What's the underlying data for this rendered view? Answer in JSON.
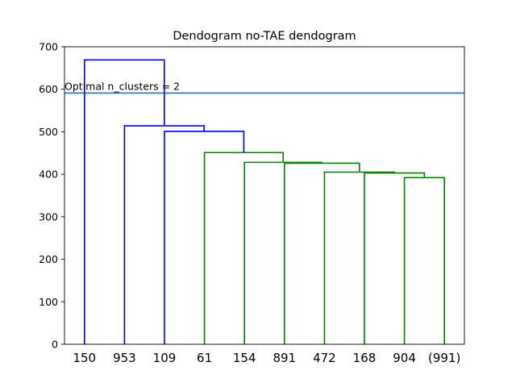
{
  "chart_data": {
    "type": "dendrogram",
    "title": "Dendogram no-TAE dendogram",
    "xlabel": "",
    "ylabel": "",
    "ylim": [
      0,
      700
    ],
    "yticks": [
      0,
      100,
      200,
      300,
      400,
      500,
      600,
      700
    ],
    "leaves": [
      "150",
      "953",
      "109",
      "61",
      "154",
      "891",
      "472",
      "168",
      "904",
      "(991)"
    ],
    "threshold": {
      "value": 591,
      "label": "Optimal n_clusters = 2",
      "color": "#1f77b4"
    },
    "colors": {
      "blue": "#0000ff",
      "green": "#008000"
    },
    "links": [
      {
        "left": [
          8,
          0
        ],
        "right": [
          9,
          0
        ],
        "height": 392,
        "color": "green"
      },
      {
        "left": [
          7,
          0
        ],
        "right": [
          8.5,
          392
        ],
        "height": 403,
        "color": "green"
      },
      {
        "left": [
          6,
          0
        ],
        "right": [
          7.75,
          403
        ],
        "height": 405,
        "color": "green"
      },
      {
        "left": [
          5,
          0
        ],
        "right": [
          6.875,
          405
        ],
        "height": 426,
        "color": "green"
      },
      {
        "left": [
          4,
          0
        ],
        "right": [
          5.9375,
          426
        ],
        "height": 428,
        "color": "green"
      },
      {
        "left": [
          3,
          0
        ],
        "right": [
          4.96875,
          428
        ],
        "height": 451,
        "color": "green"
      },
      {
        "left": [
          2,
          0
        ],
        "right": [
          3.984375,
          451
        ],
        "height": 501,
        "color": "blue"
      },
      {
        "left": [
          1,
          0
        ],
        "right": [
          2.9921875,
          501
        ],
        "height": 514,
        "color": "blue"
      },
      {
        "left": [
          0,
          0
        ],
        "right": [
          1.99609375,
          514
        ],
        "height": 669,
        "color": "blue"
      }
    ]
  }
}
